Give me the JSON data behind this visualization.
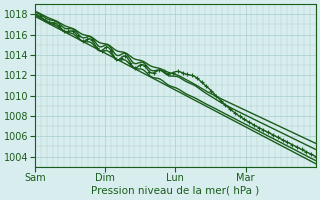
{
  "bg_color": "#d8eeee",
  "plot_bg_color": "#d8eeee",
  "grid_color": "#aacccc",
  "line_color": "#1a5c1a",
  "xlabel": "Pression niveau de la mer( hPa )",
  "xtick_labels": [
    "Sam",
    "Dim",
    "Lun",
    "Mar"
  ],
  "xtick_positions": [
    0,
    72,
    144,
    216
  ],
  "ylim": [
    1003,
    1019
  ],
  "yticks": [
    1004,
    1006,
    1008,
    1010,
    1012,
    1014,
    1016,
    1018
  ],
  "xlim": [
    0,
    288
  ],
  "figsize": [
    3.2,
    2.0
  ],
  "dpi": 100
}
